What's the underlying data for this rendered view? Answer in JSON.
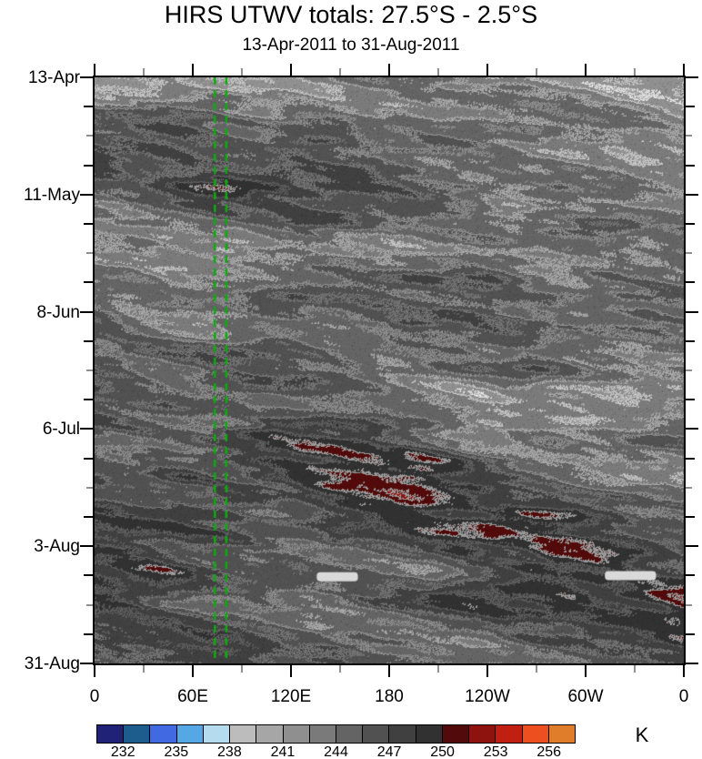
{
  "header": {
    "title": "HIRS UTWV totals: 27.5°S - 2.5°S",
    "subtitle": "13-Apr-2011 to 31-Aug-2011"
  },
  "chart_data": {
    "type": "heatmap",
    "variant": "hovmoller-time-longitude-filled-contour",
    "title": "HIRS UTWV totals: 27.5°S - 2.5°S",
    "subtitle": "13-Apr-2011 to 31-Aug-2011",
    "x_axis": {
      "tick_labels": [
        "0",
        "60E",
        "120E",
        "180",
        "120W",
        "60W",
        "0"
      ],
      "tick_longitudes_deg": [
        0,
        60,
        120,
        180,
        240,
        300,
        360
      ],
      "minor_tick_step_deg": 30,
      "range_deg": [
        0,
        360
      ]
    },
    "y_axis": {
      "tick_labels": [
        "13-Apr",
        "11-May",
        "8-Jun",
        "6-Jul",
        "3-Aug",
        "31-Aug"
      ],
      "start_date": "13-Apr-2011",
      "end_date": "31-Aug-2011",
      "major_step_days": 28,
      "minor_step_days": 7,
      "total_days": 140,
      "time_increases": "downward"
    },
    "colorbar": {
      "unit": "K",
      "tick_labels": [
        "232",
        "235",
        "238",
        "241",
        "244",
        "247",
        "250",
        "253",
        "256"
      ],
      "kelvin_per_cell": 1.5,
      "min_level_k": 230.5,
      "max_level_k": 257.5,
      "colors": [
        "#1f2277",
        "#1d5d8e",
        "#4169e1",
        "#55a7e6",
        "#b5dcee",
        "#bcbcbc",
        "#a6a6a6",
        "#8f8f8f",
        "#7a7a7a",
        "#646464",
        "#515151",
        "#404040",
        "#313131",
        "#520a0a",
        "#8e120e",
        "#c01f12",
        "#ee4f1f",
        "#e07d2b"
      ]
    },
    "overlays": {
      "reference_lines": {
        "style": "dashed",
        "orientation": "vertical",
        "color": "#0daa10",
        "longitudes_deg_e": [
          73.5,
          80.5
        ]
      },
      "missing_data_bars": {
        "color": "#d9d9d9",
        "bars": [
          {
            "x_frac_start": 0.377,
            "x_frac_end": 0.447,
            "y_frac": 0.852
          },
          {
            "x_frac_start": 0.866,
            "x_frac_end": 0.953,
            "y_frac": 0.85
          }
        ]
      }
    }
  }
}
